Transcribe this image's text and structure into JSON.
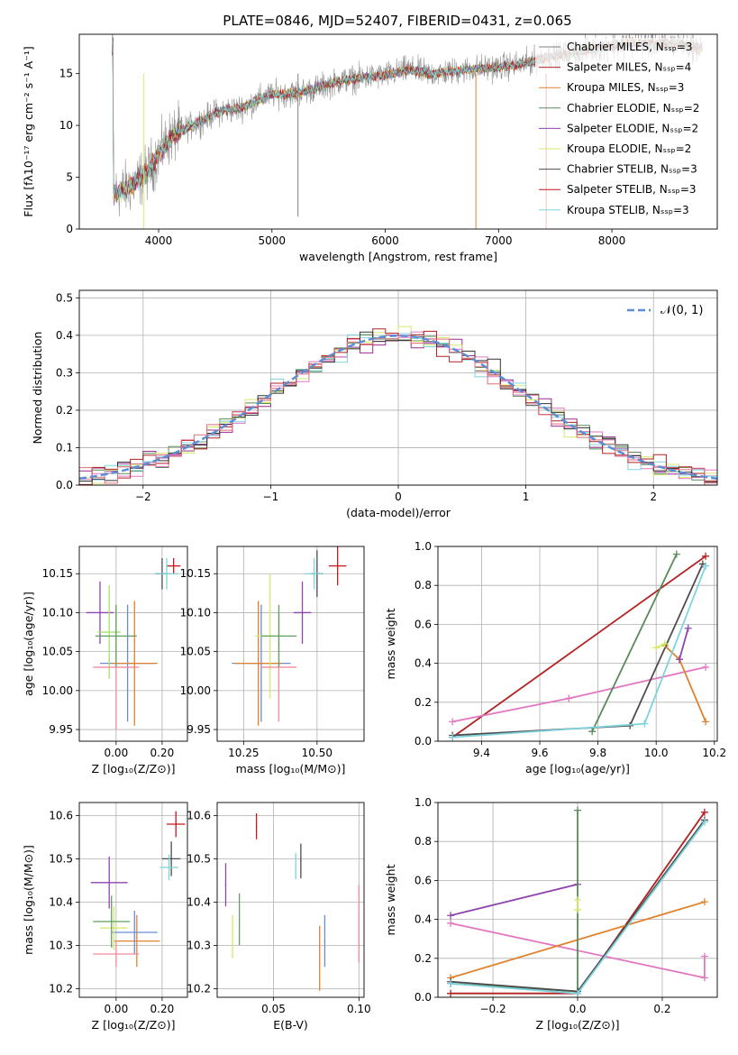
{
  "figure": {
    "title": "PLATE=0846, MJD=52407, FIBERID=0431, z=0.065"
  },
  "chart_data": [
    {
      "id": "spectrum",
      "type": "line",
      "title": "PLATE=0846, MJD=52407, FIBERID=0431, z=0.065",
      "xlabel": "wavelength [Angstrom, rest frame]",
      "ylabel": "Flux [fλ10⁻¹⁷ erg cm⁻² s⁻¹ A⁻¹]",
      "xlim": [
        3300,
        8930
      ],
      "ylim": [
        0,
        18.8
      ],
      "xticks": [
        4000,
        5000,
        6000,
        7000,
        8000
      ],
      "yticks": [
        0,
        5,
        10,
        15
      ],
      "grid": false,
      "legend_position": "top-right",
      "legend": [
        "Chabrier MILES, Nₛₛₚ=3",
        "Salpeter MILES, Nₛₛₚ=4",
        "Kroupa MILES, Nₛₛₚ=3",
        "Chabrier ELODIE, Nₛₛₚ=2",
        "Salpeter ELODIE, Nₛₛₚ=2",
        "Kroupa ELODIE, Nₛₛₚ=2",
        "Chabrier STELIB, Nₛₛₚ=3",
        "Salpeter STELIB, Nₛₛₚ=3",
        "Kroupa STELIB, Nₛₛₚ=3"
      ],
      "continuum_x": [
        3600,
        3700,
        3800,
        3900,
        4000,
        4100,
        4200,
        4300,
        4400,
        4500,
        4600,
        4700,
        4800,
        4900,
        5000,
        5200,
        5400,
        5600,
        5800,
        6000,
        6200,
        6400,
        6600,
        6800,
        7000,
        7200,
        7400,
        7600,
        7800,
        8000,
        8200,
        8400,
        8600,
        8800
      ],
      "continuum_y": [
        3.5,
        3.8,
        4.5,
        5.5,
        7.2,
        8.8,
        9.5,
        10.0,
        10.6,
        11.2,
        11.5,
        11.6,
        12.0,
        12.6,
        13.0,
        13.1,
        13.6,
        14.3,
        14.6,
        14.8,
        15.4,
        15.0,
        15.2,
        15.5,
        15.6,
        15.9,
        16.5,
        16.9,
        17.3,
        17.7,
        17.9,
        17.9,
        17.8,
        17.4
      ]
    },
    {
      "id": "residuals",
      "type": "line",
      "xlabel": "(data-model)/error",
      "ylabel": "Normed distribution",
      "xlim": [
        -2.5,
        2.5
      ],
      "ylim": [
        0,
        0.52
      ],
      "xticks": [
        -2,
        -1,
        0,
        1,
        2
      ],
      "yticks": [
        0.0,
        0.1,
        0.2,
        0.3,
        0.4,
        0.5
      ],
      "grid": true,
      "legend_position": "top-right",
      "legend": [
        "𝒩(0, 1)"
      ],
      "bin_width": 0.1
    },
    {
      "id": "age_vs_Z",
      "type": "scatter",
      "xlabel": "Z [log₁₀(Z/Z⊙)]",
      "ylabel": "age  [log₁₀(age/yr)]",
      "xlim": [
        -0.16,
        0.31
      ],
      "ylim": [
        9.935,
        10.185
      ],
      "xticks": [
        0.0,
        0.2
      ],
      "yticks": [
        9.95,
        10.0,
        10.05,
        10.1,
        10.15
      ],
      "grid": true,
      "points": [
        {
          "x": 0.05,
          "y": 10.035,
          "xerr": 0.12,
          "yerr": 0.075,
          "color": "#6a8cd4"
        },
        {
          "x": 0.25,
          "y": 10.16,
          "xerr": 0.03,
          "yerr": 0.01,
          "color": "#c7171b"
        },
        {
          "x": -0.07,
          "y": 10.1,
          "xerr": 0.06,
          "yerr": 0.04,
          "color": "#8e44ad"
        },
        {
          "x": 0.2,
          "y": 10.15,
          "xerr": 0.03,
          "yerr": 0.02,
          "color": "#4d4d4d"
        },
        {
          "x": 0.08,
          "y": 10.035,
          "xerr": 0.1,
          "yerr": 0.08,
          "color": "#e0822d"
        },
        {
          "x": -0.03,
          "y": 10.075,
          "xerr": 0.05,
          "yerr": 0.06,
          "color": "#a6e36d"
        },
        {
          "x": 0.0,
          "y": 10.03,
          "xerr": 0.1,
          "yerr": 0.08,
          "color": "#f28a9b"
        },
        {
          "x": 0.0,
          "y": 10.07,
          "xerr": 0.09,
          "yerr": 0.04,
          "color": "#60a060"
        },
        {
          "x": 0.22,
          "y": 10.15,
          "xerr": 0.05,
          "yerr": 0.02,
          "color": "#7ed3dc"
        }
      ]
    },
    {
      "id": "age_vs_mass",
      "type": "scatter",
      "xlabel": "mass [log₁₀(M/M⊙)]",
      "ylabel": "",
      "xlim": [
        10.16,
        10.66
      ],
      "ylim": [
        9.935,
        10.185
      ],
      "xticks": [
        10.25,
        10.5
      ],
      "yticks": [
        9.95,
        10.0,
        10.05,
        10.1,
        10.15
      ],
      "grid": true,
      "points": [
        {
          "x": 10.31,
          "y": 10.035,
          "xerr": 0.1,
          "yerr": 0.075,
          "color": "#6a8cd4"
        },
        {
          "x": 10.57,
          "y": 10.16,
          "xerr": 0.03,
          "yerr": 0.025,
          "color": "#c7171b"
        },
        {
          "x": 10.45,
          "y": 10.1,
          "xerr": 0.03,
          "yerr": 0.04,
          "color": "#8e44ad"
        },
        {
          "x": 10.5,
          "y": 10.15,
          "xerr": 0.02,
          "yerr": 0.03,
          "color": "#4d4d4d"
        },
        {
          "x": 10.3,
          "y": 10.035,
          "xerr": 0.08,
          "yerr": 0.08,
          "color": "#e0822d"
        },
        {
          "x": 10.34,
          "y": 10.07,
          "xerr": 0.05,
          "yerr": 0.08,
          "color": "#d4ea6b"
        },
        {
          "x": 10.37,
          "y": 10.03,
          "xerr": 0.06,
          "yerr": 0.07,
          "color": "#f28a9b"
        },
        {
          "x": 10.37,
          "y": 10.07,
          "xerr": 0.06,
          "yerr": 0.04,
          "color": "#60a060"
        },
        {
          "x": 10.49,
          "y": 10.15,
          "xerr": 0.03,
          "yerr": 0.02,
          "color": "#7ed3dc"
        }
      ]
    },
    {
      "id": "weight_vs_age",
      "type": "line",
      "xlabel": "age  [log₁₀(age/yr)]",
      "ylabel": "mass weight",
      "xlim": [
        9.25,
        10.21
      ],
      "ylim": [
        0,
        1.0
      ],
      "xticks": [
        9.4,
        9.6,
        9.8,
        10.0,
        10.2
      ],
      "yticks": [
        0.0,
        0.2,
        0.4,
        0.6,
        0.8,
        1.0
      ],
      "grid": true,
      "series": [
        {
          "x": [
            9.3,
            10.17
          ],
          "y": [
            0.02,
            0.95
          ],
          "color": "#b22222"
        },
        {
          "x": [
            9.3,
            9.7,
            10.17
          ],
          "y": [
            0.1,
            0.22,
            0.38
          ],
          "color": "#e377c2"
        },
        {
          "x": [
            10.03,
            10.08,
            10.17
          ],
          "y": [
            0.49,
            0.42,
            0.1
          ],
          "color": "#e0822d"
        },
        {
          "x": [
            10.08,
            10.11
          ],
          "y": [
            0.42,
            0.58
          ],
          "color": "#8e44ad"
        },
        {
          "x": [
            9.78,
            10.07
          ],
          "y": [
            0.05,
            0.96
          ],
          "color": "#5a8a5a"
        },
        {
          "x": [
            9.3,
            9.91,
            10.16
          ],
          "y": [
            0.03,
            0.08,
            0.91
          ],
          "color": "#4d4d4d"
        },
        {
          "x": [
            9.3,
            9.96,
            10.17
          ],
          "y": [
            0.02,
            0.09,
            0.9
          ],
          "color": "#7ed3dc"
        },
        {
          "x": [
            10.0,
            10.03
          ],
          "y": [
            0.48,
            0.5
          ],
          "color": "#d4ea6b"
        }
      ]
    },
    {
      "id": "mass_vs_Z",
      "type": "scatter",
      "xlabel": "Z [log₁₀(Z/Z⊙)]",
      "ylabel": "mass [log₁₀(M/M⊙)]",
      "xlim": [
        -0.16,
        0.31
      ],
      "ylim": [
        10.18,
        10.63
      ],
      "xticks": [
        0.0,
        0.2
      ],
      "yticks": [
        10.2,
        10.3,
        10.4,
        10.5,
        10.6
      ],
      "grid": true,
      "points": [
        {
          "x": 0.09,
          "y": 10.31,
          "xerr": 0.1,
          "yerr": 0.06,
          "color": "#e0822d"
        },
        {
          "x": 0.08,
          "y": 10.33,
          "xerr": 0.1,
          "yerr": 0.05,
          "color": "#6a8cd4"
        },
        {
          "x": 0.26,
          "y": 10.58,
          "xerr": 0.04,
          "yerr": 0.03,
          "color": "#c7171b"
        },
        {
          "x": -0.03,
          "y": 10.445,
          "xerr": 0.08,
          "yerr": 0.06,
          "color": "#8e44ad"
        },
        {
          "x": 0.24,
          "y": 10.5,
          "xerr": 0.04,
          "yerr": 0.04,
          "color": "#4d4d4d"
        },
        {
          "x": -0.01,
          "y": 10.34,
          "xerr": 0.06,
          "yerr": 0.05,
          "color": "#d4ea6b"
        },
        {
          "x": 0.0,
          "y": 10.28,
          "xerr": 0.1,
          "yerr": 0.03,
          "color": "#f28a9b"
        },
        {
          "x": -0.02,
          "y": 10.355,
          "xerr": 0.08,
          "yerr": 0.06,
          "color": "#60a060"
        },
        {
          "x": 0.23,
          "y": 10.48,
          "xerr": 0.04,
          "yerr": 0.03,
          "color": "#7ed3dc"
        }
      ]
    },
    {
      "id": "mass_vs_EBV",
      "type": "scatter",
      "xlabel": "E(B-V)",
      "ylabel": "",
      "xlim": [
        0.017,
        0.103
      ],
      "ylim": [
        10.18,
        10.63
      ],
      "xticks": [
        0.05,
        0.1
      ],
      "yticks": [
        10.2,
        10.3,
        10.4,
        10.5,
        10.6
      ],
      "grid": true,
      "points": [
        {
          "x": 0.022,
          "y": 10.44,
          "xerr": 0.0,
          "yerr": 0.05,
          "color": "#8e44ad"
        },
        {
          "x": 0.026,
          "y": 10.32,
          "xerr": 0.0,
          "yerr": 0.05,
          "color": "#d4ea6b"
        },
        {
          "x": 0.03,
          "y": 10.36,
          "xerr": 0.0,
          "yerr": 0.06,
          "color": "#60a060"
        },
        {
          "x": 0.04,
          "y": 10.575,
          "xerr": 0.0,
          "yerr": 0.03,
          "color": "#c7171b"
        },
        {
          "x": 0.063,
          "y": 10.483,
          "xerr": 0.0,
          "yerr": 0.03,
          "color": "#7ed3dc"
        },
        {
          "x": 0.066,
          "y": 10.495,
          "xerr": 0.0,
          "yerr": 0.04,
          "color": "#4d4d4d"
        },
        {
          "x": 0.077,
          "y": 10.27,
          "xerr": 0.0,
          "yerr": 0.075,
          "color": "#e0822d"
        },
        {
          "x": 0.08,
          "y": 10.31,
          "xerr": 0.0,
          "yerr": 0.06,
          "color": "#6a8cd4"
        },
        {
          "x": 0.1,
          "y": 10.35,
          "xerr": 0.0,
          "yerr": 0.09,
          "color": "#f28a9b"
        }
      ]
    },
    {
      "id": "weight_vs_Z",
      "type": "line",
      "xlabel": "Z [log₁₀(Z/Z⊙)]",
      "ylabel": "mass weight",
      "xlim": [
        -0.33,
        0.33
      ],
      "ylim": [
        0,
        1.0
      ],
      "xticks": [
        -0.2,
        0.0,
        0.2
      ],
      "yticks": [
        0.0,
        0.2,
        0.4,
        0.6,
        0.8,
        1.0
      ],
      "grid": true,
      "series": [
        {
          "x": [
            -0.3,
            0.0,
            0.3
          ],
          "y": [
            0.02,
            0.02,
            0.95
          ],
          "color": "#b22222"
        },
        {
          "x": [
            -0.3,
            0.0
          ],
          "y": [
            0.42,
            0.58
          ],
          "color": "#8e44ad"
        },
        {
          "x": [
            -0.3,
            0.3,
            0.3
          ],
          "y": [
            0.38,
            0.1,
            0.21
          ],
          "color": "#e377c2"
        },
        {
          "x": [
            -0.3,
            0.3
          ],
          "y": [
            0.1,
            0.49
          ],
          "color": "#e0822d"
        },
        {
          "x": [
            -0.3,
            0.0,
            0.0
          ],
          "y": [
            0.07,
            0.03,
            0.96
          ],
          "color": "#5a8a5a"
        },
        {
          "x": [
            -0.3,
            0.0,
            0.3
          ],
          "y": [
            0.08,
            0.03,
            0.91
          ],
          "color": "#4d4d4d"
        },
        {
          "x": [
            -0.3,
            0.0,
            0.3
          ],
          "y": [
            0.07,
            0.02,
            0.9
          ],
          "color": "#7ed3dc"
        },
        {
          "x": [
            0.0,
            0.0
          ],
          "y": [
            0.45,
            0.5
          ],
          "color": "#d4ea6b"
        }
      ]
    }
  ],
  "residual_colors": [
    "#9c2a8f",
    "#5a8a5a",
    "#d4ea6b",
    "#e377c2",
    "#7ed3dc",
    "#b22222",
    "#333333",
    "#e06c7a"
  ]
}
